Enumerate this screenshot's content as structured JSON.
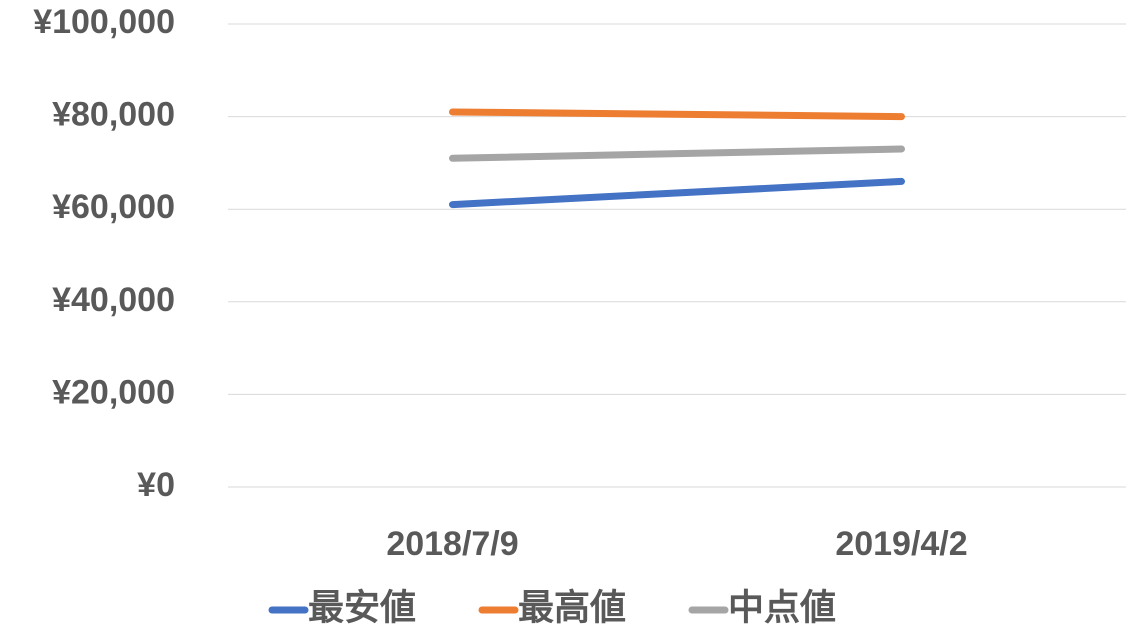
{
  "chart_data": {
    "type": "line",
    "categories": [
      "2018/7/9",
      "2019/4/2"
    ],
    "series": [
      {
        "name": "最安値",
        "color": "#4472c4",
        "values": [
          61000,
          66000
        ]
      },
      {
        "name": "最高値",
        "color": "#ed7d31",
        "values": [
          81000,
          80000
        ]
      },
      {
        "name": "中点値",
        "color": "#a5a5a5",
        "values": [
          71000,
          73000
        ]
      }
    ],
    "ylim": [
      0,
      100000
    ],
    "yticks": [
      {
        "value": 0,
        "label": "¥0"
      },
      {
        "value": 20000,
        "label": "¥20,000"
      },
      {
        "value": 40000,
        "label": "¥40,000"
      },
      {
        "value": 60000,
        "label": "¥60,000"
      },
      {
        "value": 80000,
        "label": "¥80,000"
      },
      {
        "value": 100000,
        "label": "¥100,000"
      }
    ],
    "grid": true,
    "legend": "bottom"
  }
}
